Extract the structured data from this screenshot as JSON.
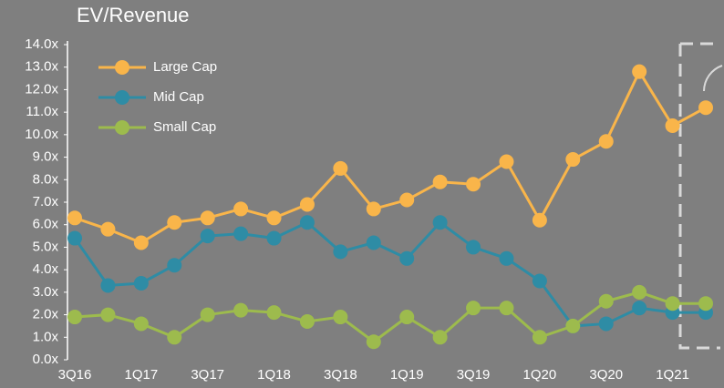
{
  "chart_data": {
    "type": "line",
    "title": "EV/Revenue",
    "categories": [
      "3Q16",
      null,
      "1Q17",
      null,
      "3Q17",
      null,
      "1Q18",
      null,
      "3Q18",
      null,
      "1Q19",
      null,
      "3Q19",
      null,
      "1Q20",
      null,
      "3Q20",
      null,
      "1Q21",
      null
    ],
    "series": [
      {
        "name": "Large Cap",
        "color": "#f9b54a",
        "values": [
          6.3,
          5.8,
          5.2,
          6.1,
          6.3,
          6.7,
          6.3,
          6.9,
          8.5,
          6.7,
          7.1,
          7.9,
          7.8,
          8.8,
          6.2,
          8.9,
          9.7,
          12.8,
          10.4,
          11.2
        ]
      },
      {
        "name": "Mid Cap",
        "color": "#2e8ca5",
        "values": [
          5.4,
          3.3,
          3.4,
          4.2,
          5.5,
          5.6,
          5.4,
          6.1,
          4.8,
          5.2,
          4.5,
          6.1,
          5.0,
          4.5,
          3.5,
          1.5,
          1.6,
          2.3,
          2.1,
          2.1
        ]
      },
      {
        "name": "Small Cap",
        "color": "#9dbb4d",
        "values": [
          1.9,
          2.0,
          1.6,
          1.0,
          2.0,
          2.2,
          2.1,
          1.7,
          1.9,
          0.8,
          1.9,
          1.0,
          2.3,
          2.3,
          1.0,
          1.5,
          2.6,
          3.0,
          2.5,
          2.5
        ]
      }
    ],
    "ylim": [
      0,
      14
    ],
    "yticks": [
      {
        "value": 0,
        "label": "0.0x"
      },
      {
        "value": 1,
        "label": "1.0x"
      },
      {
        "value": 2,
        "label": "2.0x"
      },
      {
        "value": 3,
        "label": "3.0x"
      },
      {
        "value": 4,
        "label": "4.0x"
      },
      {
        "value": 5,
        "label": "5.0x"
      },
      {
        "value": 6,
        "label": "6.0x"
      },
      {
        "value": 7,
        "label": "7.0x"
      },
      {
        "value": 8,
        "label": "8.0x"
      },
      {
        "value": 9,
        "label": "9.0x"
      },
      {
        "value": 10,
        "label": "10.0x"
      },
      {
        "value": 11,
        "label": "11.0x"
      },
      {
        "value": 12,
        "label": "12.0x"
      },
      {
        "value": 13,
        "label": "13.0x"
      },
      {
        "value": 14,
        "label": "14.0x"
      }
    ],
    "grid": false,
    "legend": "upper left"
  }
}
